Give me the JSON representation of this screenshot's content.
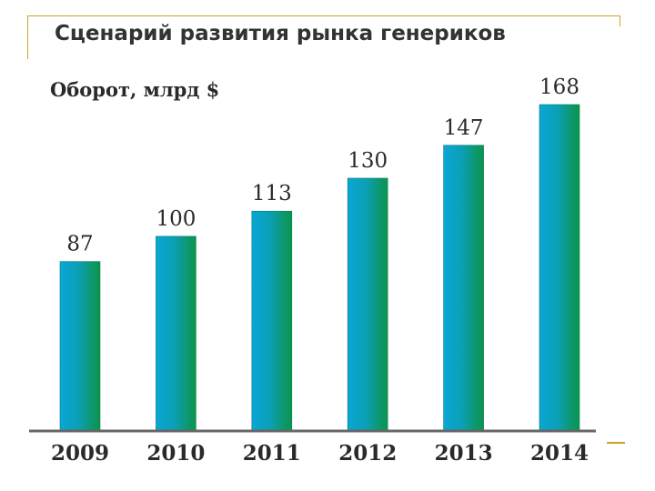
{
  "chart_data": {
    "type": "bar",
    "title": "Сценарий развития рынка генериков",
    "ylabel": "Оборот, млрд $",
    "xlabel": "",
    "categories": [
      "2009",
      "2010",
      "2011",
      "2012",
      "2013",
      "2014"
    ],
    "values": [
      87,
      100,
      113,
      130,
      147,
      168
    ],
    "ylim": [
      0,
      168
    ],
    "grid": false,
    "legend": "none",
    "colors": {
      "bar_left": "#0aa6d8",
      "bar_right": "#0c9447",
      "axis": "#666666",
      "frame": "#c9a227",
      "text": "#2a2a2a"
    }
  }
}
